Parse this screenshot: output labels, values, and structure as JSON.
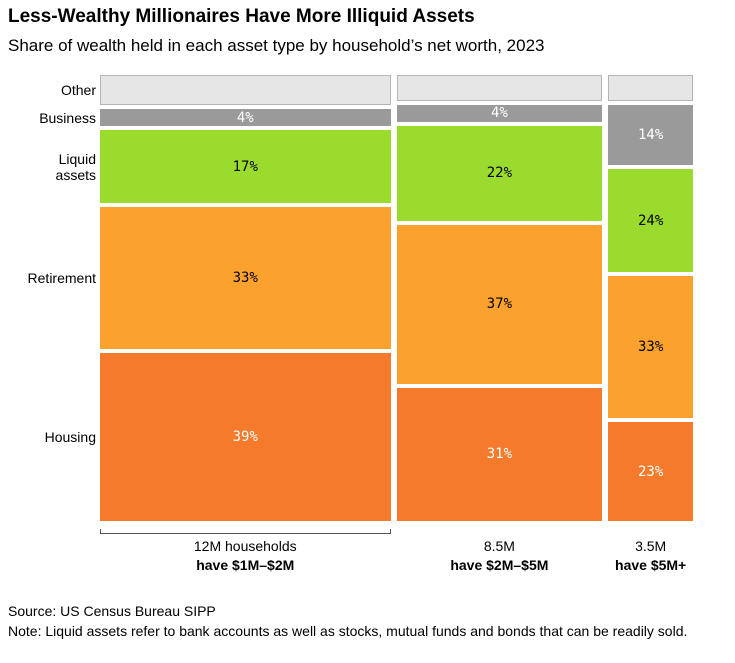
{
  "chart_data": {
    "type": "mekko",
    "title": "Less-Wealthy Millionaires Have More Illiquid Assets",
    "subtitle": "Share of wealth held in each asset type by household’s net worth, 2023",
    "categories": [
      "have $1M–$2M",
      "have $2M–$5M",
      "have $5M+"
    ],
    "widths": [
      12,
      8.5,
      3.5
    ],
    "width_labels": [
      "12M households",
      "8.5M",
      "3.5M"
    ],
    "ylim": [
      0,
      100
    ],
    "series": [
      {
        "name": "Housing",
        "color": "#f67a2c",
        "label_color": "#ffffff",
        "values": [
          39,
          31,
          23
        ],
        "value_labels": [
          "39%",
          "31%",
          "23%"
        ]
      },
      {
        "name": "Retirement",
        "color": "#fba22e",
        "label_color": "#000000",
        "values": [
          33,
          37,
          33
        ],
        "value_labels": [
          "33%",
          "37%",
          "33%"
        ]
      },
      {
        "name": "Liquid assets",
        "color": "#9bdb2e",
        "label_color": "#000000",
        "values": [
          17,
          22,
          24
        ],
        "value_labels": [
          "17%",
          "22%",
          "24%"
        ]
      },
      {
        "name": "Business",
        "color": "#9a9a9a",
        "label_color": "#ffffff",
        "values": [
          4,
          4,
          14
        ],
        "value_labels": [
          "4%",
          "4%",
          "14%"
        ]
      },
      {
        "name": "Other",
        "color": "#e6e6e6",
        "values": [
          7,
          6,
          6
        ]
      }
    ],
    "source": "Source: US Census Bureau SIPP",
    "note": "Note: Liquid assets refer to bank accounts as well as stocks, mutual funds and bonds that can be readily sold."
  }
}
